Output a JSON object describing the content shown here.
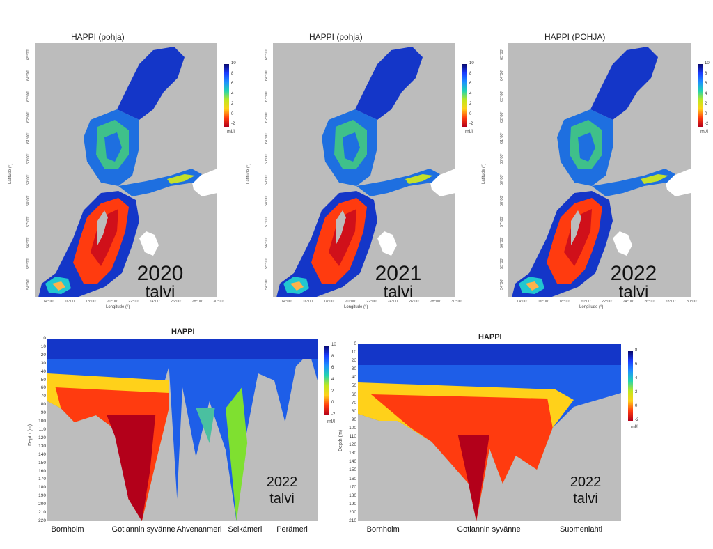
{
  "maps": [
    {
      "title": "HAPPI (pohja)",
      "year": "2020",
      "season": "talvi",
      "xlabel": "Longitude (°)",
      "ylabel": "Latitude (°)",
      "unit": "ml/l"
    },
    {
      "title": "HAPPI (pohja)",
      "year": "2021",
      "season": "talvi",
      "xlabel": "Longitude (°)",
      "ylabel": "Latitude (°)",
      "unit": "ml/l"
    },
    {
      "title": "HAPPI (POHJA)",
      "year": "2022",
      "season": "talvi",
      "xlabel": "Longitude (°)",
      "ylabel": "Latitude (°)",
      "unit": "ml/l"
    }
  ],
  "map_ticks": {
    "lon": [
      "14°00'",
      "16°00'",
      "18°00'",
      "20°00'",
      "22°00'",
      "24°00'",
      "26°00'",
      "28°00'",
      "30°00'"
    ],
    "lat": [
      "54°00'",
      "55°00'",
      "56°00'",
      "57°00'",
      "58°00'",
      "59°00'",
      "60°00'",
      "61°00'",
      "62°00'",
      "63°00'",
      "64°00'",
      "65°00'"
    ]
  },
  "colorbar": {
    "ticks": [
      "10",
      "8",
      "6",
      "4",
      "2",
      "0",
      "-2"
    ],
    "unit": "ml/l",
    "colors": [
      "#08086b",
      "#1a3cff",
      "#1e90ff",
      "#22d3b0",
      "#bfe81e",
      "#ffd11a",
      "#ff3b0f",
      "#b3001a"
    ]
  },
  "sections": [
    {
      "title": "HAPPI",
      "year": "2022",
      "season": "talvi",
      "ylabel": "Depth (m)",
      "depth_ticks": [
        "0",
        "10",
        "20",
        "30",
        "40",
        "50",
        "60",
        "70",
        "80",
        "90",
        "100",
        "110",
        "120",
        "130",
        "140",
        "150",
        "160",
        "170",
        "180",
        "190",
        "200",
        "210",
        "220"
      ],
      "cb_ticks": [
        "10",
        "8",
        "6",
        "4",
        "2",
        "0",
        "-2"
      ],
      "unit": "ml/l",
      "stations": [
        "Bornholm",
        "Gotlannin syvänne",
        "Ahvenanmeri",
        "Selkämeri",
        "Perämeri"
      ]
    },
    {
      "title": "HAPPI",
      "year": "2022",
      "season": "talvi",
      "ylabel": "Depth (m)",
      "depth_ticks": [
        "0",
        "10",
        "20",
        "30",
        "40",
        "50",
        "60",
        "70",
        "80",
        "90",
        "100",
        "110",
        "120",
        "130",
        "140",
        "150",
        "160",
        "170",
        "180",
        "190",
        "200",
        "210"
      ],
      "cb_ticks": [
        "8",
        "6",
        "4",
        "2",
        "0",
        "-2"
      ],
      "unit": "ml/l",
      "stations": [
        "Bornholm",
        "Gotlannin syvänne",
        "Suomenlahti"
      ]
    }
  ]
}
